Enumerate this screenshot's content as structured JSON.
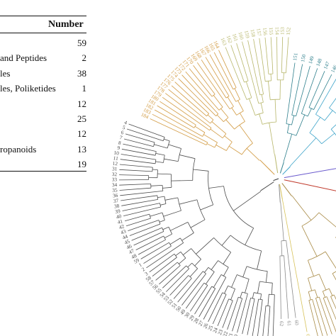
{
  "legend": {
    "header": "Number",
    "rows": [
      {
        "label": "",
        "count": "59"
      },
      {
        "label": "and Peptides",
        "count": "2"
      },
      {
        "label": "les",
        "count": "38"
      },
      {
        "label": "les, Poliketides",
        "count": "1"
      },
      {
        "label": "",
        "count": "12"
      },
      {
        "label": "",
        "count": "25"
      },
      {
        "label": "",
        "count": "12"
      },
      {
        "label": "ropanoids",
        "count": "13"
      },
      {
        "label": "",
        "count": "19"
      }
    ]
  },
  "clades": [
    {
      "color": "#4b4b4b",
      "leaves": [
        "4",
        "5",
        "6",
        "7",
        "8",
        "9",
        "10",
        "11",
        "12",
        "31",
        "32",
        "33",
        "34",
        "35",
        "36",
        "37",
        "38",
        "39",
        "40",
        "41",
        "42",
        "43",
        "44",
        "45",
        "46",
        "47",
        "48",
        "59",
        "1",
        "2",
        "3",
        "58",
        "57",
        "56",
        "55",
        "54",
        "53",
        "52",
        "51",
        "50",
        "49",
        "30",
        "29",
        "28",
        "27",
        "26",
        "25",
        "24",
        "23",
        "22",
        "21",
        "20",
        "19",
        "18",
        "17",
        "16",
        "15",
        "14",
        "13"
      ]
    },
    {
      "color": "#8a8a8a",
      "leaves": [
        "62",
        "61",
        "60"
      ]
    },
    {
      "color": "#d7c25a",
      "leaves": [
        "63"
      ]
    },
    {
      "color": "#a88a45",
      "leaves": [
        "64",
        "65",
        "66",
        "67",
        "68",
        "69",
        "70",
        "71",
        "72",
        "73",
        "74",
        "75",
        "76",
        "77",
        "78",
        "79",
        "80",
        "81",
        "82",
        "83",
        "84",
        "85",
        "86",
        "87",
        "88",
        "89",
        "90",
        "91",
        "92"
      ]
    },
    {
      "color": "#c0392b",
      "leaves": []
    },
    {
      "color": "#6a5acd",
      "leaves": []
    },
    {
      "color": "#3ba3c9",
      "leaves": [
        "140",
        "141",
        "142",
        "143",
        "144",
        "145"
      ]
    },
    {
      "color": "#2e7f8c",
      "leaves": [
        "146",
        "147",
        "148",
        "149",
        "150",
        "151"
      ]
    },
    {
      "color": "#b7b66a",
      "leaves": [
        "152",
        "153",
        "154",
        "155",
        "156",
        "157",
        "158",
        "159",
        "160",
        "161",
        "162",
        "163"
      ]
    },
    {
      "color": "#d29b43",
      "leaves": [
        "164",
        "165",
        "166",
        "167",
        "168",
        "169",
        "170",
        "171",
        "172",
        "173",
        "174",
        "175",
        "176",
        "177",
        "178",
        "179",
        "180",
        "181",
        "182",
        "183",
        "184"
      ]
    }
  ]
}
